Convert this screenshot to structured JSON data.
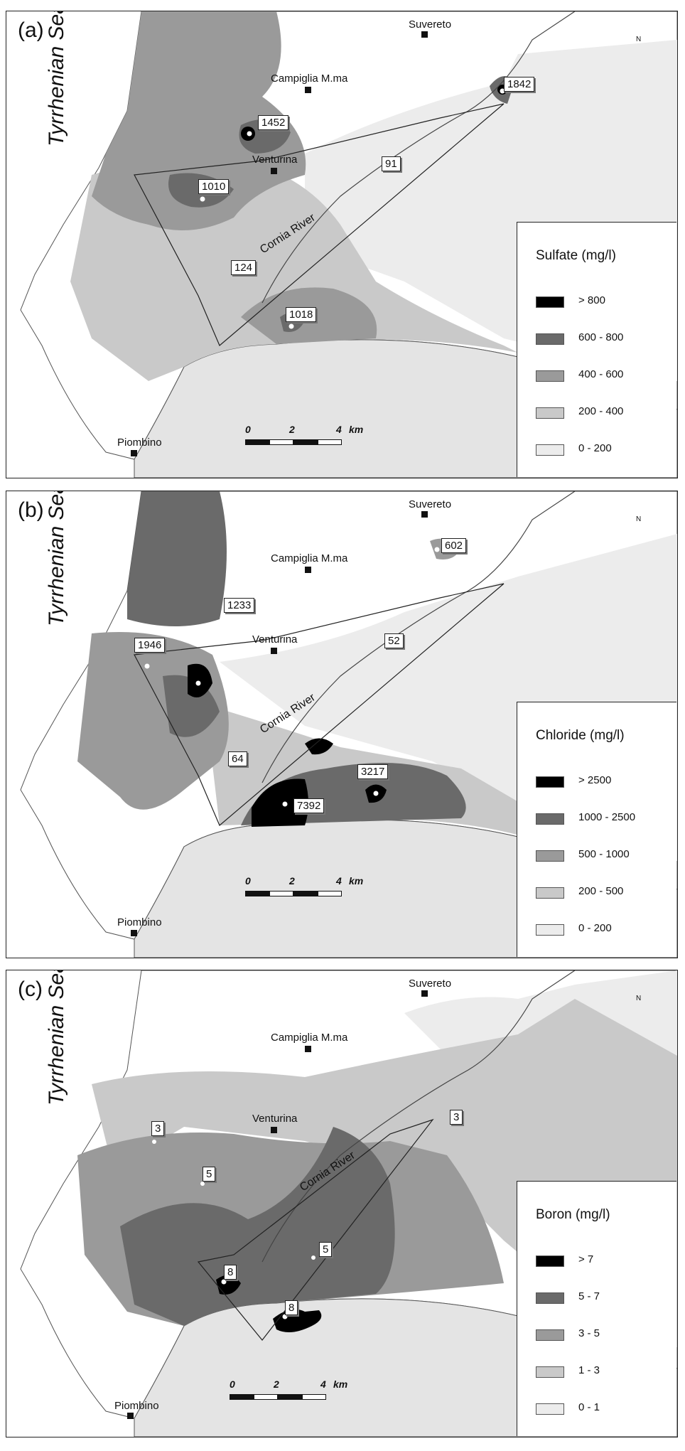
{
  "map_common": {
    "sea_label": "Tyrrhenian Sea",
    "north_label": "N",
    "river_label": "Cornia River",
    "towns": {
      "suvereto": "Suvereto",
      "campiglia": "Campiglia M.ma",
      "venturina": "Venturina",
      "piombino": "Piombino"
    },
    "scale": {
      "t0": "0",
      "t1": "2",
      "t2": "4",
      "unit": "km"
    },
    "colors": {
      "c0": "#ececec",
      "c1": "#c9c9c9",
      "c2": "#9a9a9a",
      "c3": "#6a6a6a",
      "c4": "#000000",
      "sea": "#e4e4e4"
    }
  },
  "panels": [
    {
      "id": "a",
      "label": "(a)",
      "legend_title": "Sulfate (mg/l)",
      "legend": [
        "> 800",
        "600 - 800",
        "400 - 600",
        "200 - 400",
        "0 - 200"
      ],
      "values": [
        "1452",
        "1842",
        "1010",
        "91",
        "124",
        "1018"
      ]
    },
    {
      "id": "b",
      "label": "(b)",
      "legend_title": "Chloride (mg/l)",
      "legend": [
        "> 2500",
        "1000 - 2500",
        "500 - 1000",
        "200 - 500",
        "0 - 200"
      ],
      "values": [
        "602",
        "1233",
        "1946",
        "52",
        "64",
        "3217",
        "7392"
      ]
    },
    {
      "id": "c",
      "label": "(c)",
      "legend_title": "Boron (mg/l)",
      "legend": [
        "> 7",
        "5 - 7",
        "3 - 5",
        "1 - 3",
        "0 - 1"
      ],
      "values": [
        "3",
        "3",
        "5",
        "5",
        "8",
        "8"
      ]
    }
  ]
}
